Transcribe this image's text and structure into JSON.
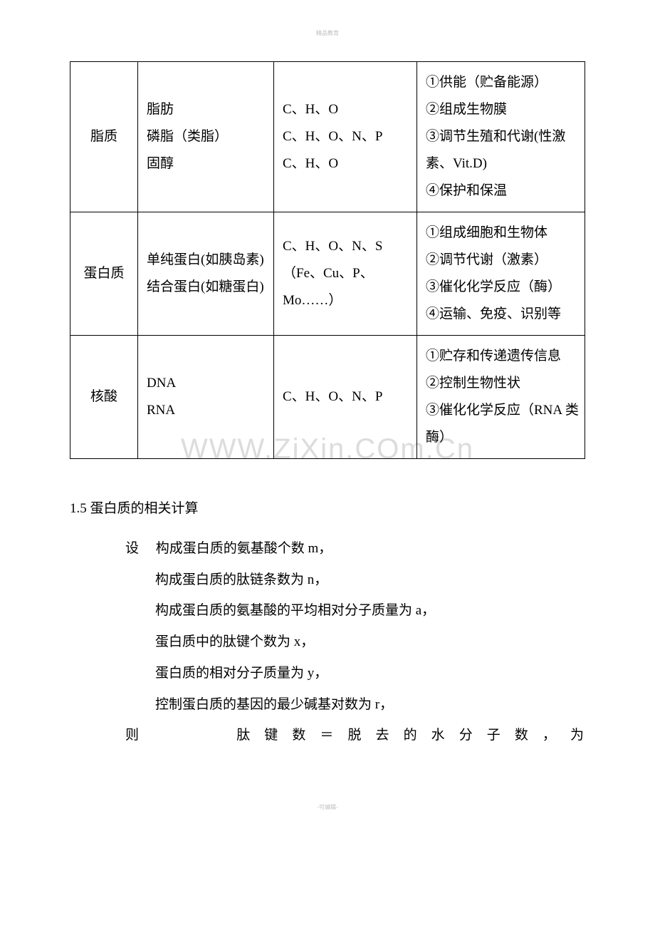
{
  "header_tiny": "精品教育",
  "footer_tiny": "-可编辑-",
  "watermark": "WWW.ZiXin.COm.Cn",
  "table": {
    "rows": [
      {
        "c1": "脂质",
        "c2": "脂肪\n磷脂（类脂）\n固醇",
        "c3": "C、H、O\nC、H、O、N、P\nC、H、O",
        "c4": "①供能（贮备能源）\n②组成生物膜\n③调节生殖和代谢(性激素、Vit.D)\n④保护和保温"
      },
      {
        "c1": "蛋白质",
        "c2": "单纯蛋白(如胰岛素)\n结合蛋白(如糖蛋白)",
        "c3": "C、H、O、N、S\n （Fe、Cu、P、Mo……）",
        "c4": "①组成细胞和生物体\n②调节代谢（激素）\n③催化化学反应（酶）\n④运输、免疫、识别等"
      },
      {
        "c1": "核酸",
        "c2": "DNA\nRNA",
        "c3": "C、H、O、N、P",
        "c4": "①贮存和传递遗传信息\n②控制生物性状\n③催化化学反应（RNA 类酶）"
      }
    ]
  },
  "section": {
    "title": "1.5 蛋白质的相关计算",
    "lines": [
      "设　 构成蛋白质的氨基酸个数 m，",
      "构成蛋白质的肽链条数为 n，",
      "构成蛋白质的氨基酸的平均相对分子质量为 a，",
      "蛋白质中的肽键个数为 x，",
      "蛋白质的相对分子质量为 y，",
      "控制蛋白质的基因的最少碱基对数为 r，"
    ],
    "final": "则　　　肽键数＝脱去的水分子数，为"
  }
}
